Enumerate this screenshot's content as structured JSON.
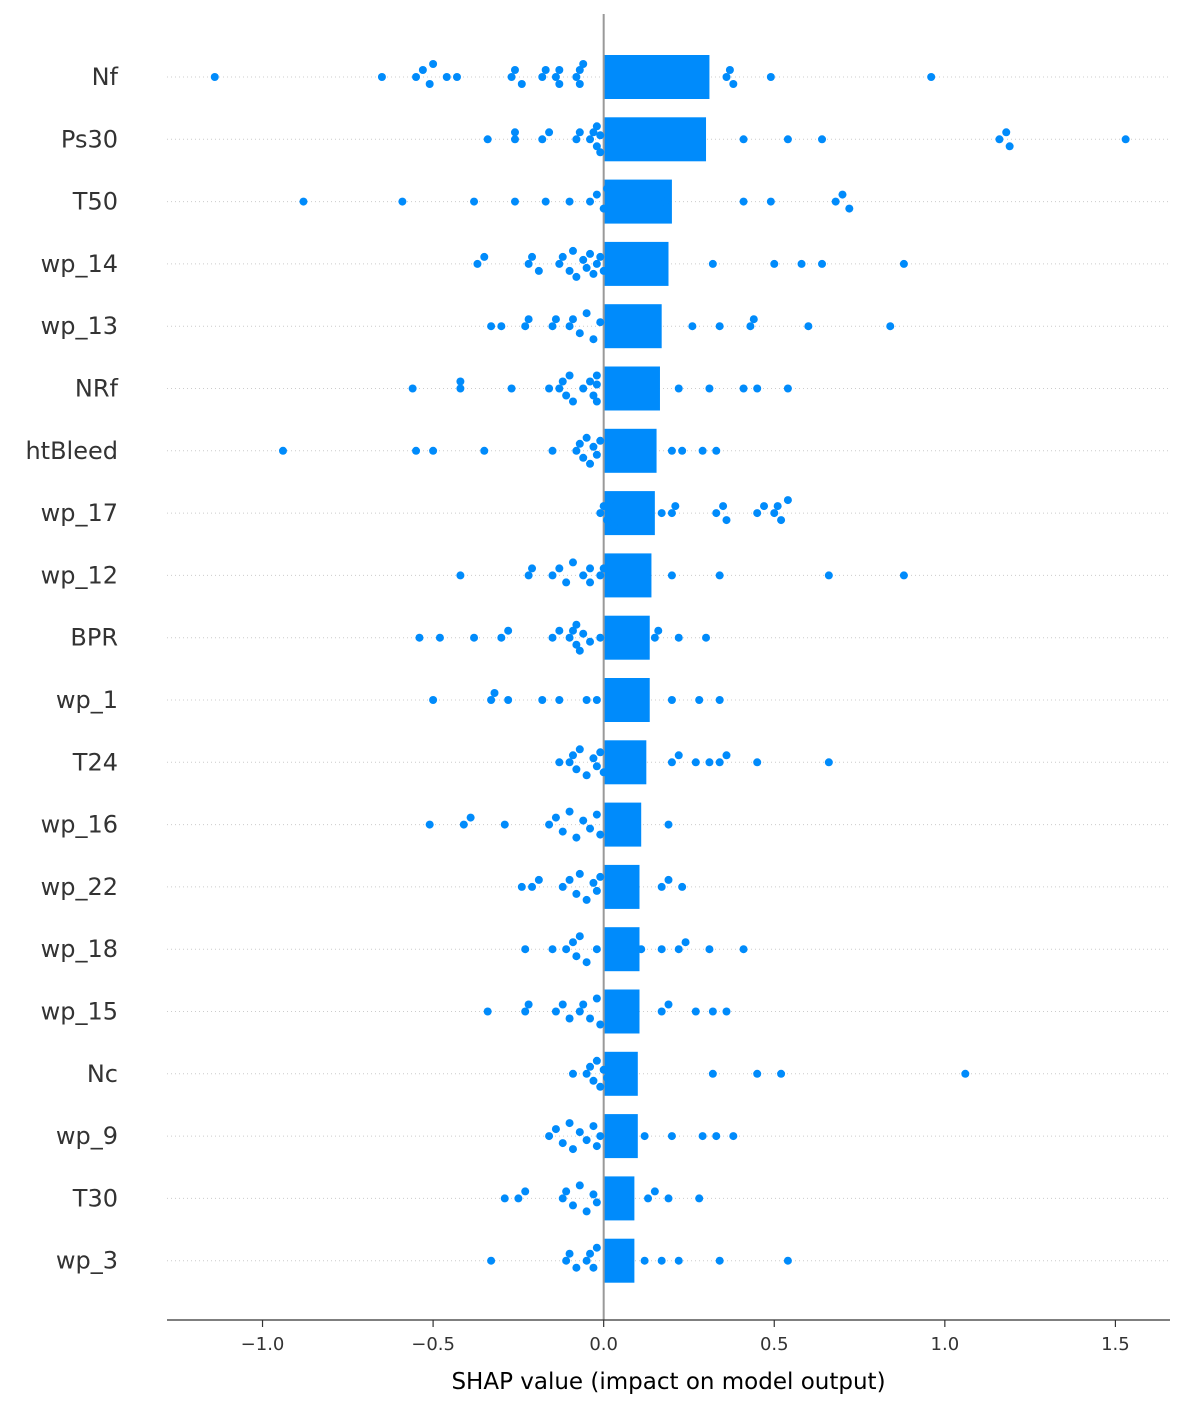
{
  "chart_data": {
    "type": "bar",
    "xlabel": "SHAP value (impact on model output)",
    "xlim": [
      -1.28,
      1.66
    ],
    "x_ticks": [
      -1.0,
      -0.5,
      0.0,
      0.5,
      1.0,
      1.5
    ],
    "x_tick_labels": [
      "−1.0",
      "−0.5",
      "0.0",
      "0.5",
      "1.0",
      "1.5"
    ],
    "grid": false,
    "colors": {
      "accent": "#008bfb",
      "zero_line": "#999999",
      "row_line": "#cccccc",
      "axis": "#333333"
    },
    "features": [
      {
        "name": "Nf",
        "mean_abs_shap": 0.31,
        "points": [
          -1.14,
          -0.65,
          -0.55,
          -0.53,
          -0.51,
          -0.5,
          -0.46,
          -0.43,
          -0.27,
          -0.26,
          -0.24,
          -0.18,
          -0.17,
          -0.14,
          -0.13,
          -0.13,
          -0.08,
          -0.07,
          -0.07,
          -0.06,
          0.36,
          0.37,
          0.38,
          0.49,
          0.96
        ]
      },
      {
        "name": "Ps30",
        "mean_abs_shap": 0.3,
        "points": [
          -0.34,
          -0.26,
          -0.26,
          -0.18,
          -0.16,
          -0.08,
          -0.07,
          -0.04,
          -0.03,
          -0.02,
          -0.02,
          -0.01,
          -0.01,
          0.41,
          0.54,
          0.64,
          1.16,
          1.18,
          1.19,
          1.53
        ]
      },
      {
        "name": "T50",
        "mean_abs_shap": 0.2,
        "points": [
          -0.88,
          -0.59,
          -0.38,
          -0.26,
          -0.17,
          -0.1,
          -0.04,
          -0.02,
          0.0,
          0.01,
          0.18,
          0.41,
          0.49,
          0.68,
          0.7,
          0.72
        ]
      },
      {
        "name": "wp_14",
        "mean_abs_shap": 0.19,
        "points": [
          -0.37,
          -0.35,
          -0.22,
          -0.21,
          -0.19,
          -0.13,
          -0.12,
          -0.1,
          -0.09,
          -0.08,
          -0.06,
          -0.05,
          -0.04,
          -0.03,
          -0.02,
          -0.01,
          0.0,
          0.32,
          0.5,
          0.58,
          0.64,
          0.88
        ]
      },
      {
        "name": "wp_13",
        "mean_abs_shap": 0.17,
        "points": [
          -0.33,
          -0.3,
          -0.23,
          -0.22,
          -0.15,
          -0.14,
          -0.1,
          -0.09,
          -0.07,
          -0.05,
          -0.03,
          -0.01,
          0.26,
          0.34,
          0.43,
          0.44,
          0.6,
          0.84
        ]
      },
      {
        "name": "NRf",
        "mean_abs_shap": 0.165,
        "points": [
          -0.56,
          -0.42,
          -0.42,
          -0.27,
          -0.16,
          -0.13,
          -0.12,
          -0.11,
          -0.1,
          -0.09,
          -0.06,
          -0.04,
          -0.03,
          -0.02,
          -0.02,
          -0.02,
          0.22,
          0.31,
          0.41,
          0.45,
          0.54
        ]
      },
      {
        "name": "htBleed",
        "mean_abs_shap": 0.155,
        "points": [
          -0.94,
          -0.55,
          -0.5,
          -0.35,
          -0.15,
          -0.08,
          -0.07,
          -0.06,
          -0.05,
          -0.04,
          -0.03,
          -0.02,
          -0.01,
          0.2,
          0.23,
          0.29,
          0.33
        ]
      },
      {
        "name": "wp_17",
        "mean_abs_shap": 0.15,
        "points": [
          -0.01,
          0.0,
          0.01,
          0.02,
          0.03,
          0.17,
          0.2,
          0.21,
          0.33,
          0.35,
          0.36,
          0.45,
          0.47,
          0.5,
          0.51,
          0.52,
          0.54
        ]
      },
      {
        "name": "wp_12",
        "mean_abs_shap": 0.14,
        "points": [
          -0.42,
          -0.22,
          -0.21,
          -0.15,
          -0.13,
          -0.11,
          -0.09,
          -0.06,
          -0.04,
          -0.04,
          -0.01,
          0.0,
          0.2,
          0.34,
          0.66,
          0.88
        ]
      },
      {
        "name": "BPR",
        "mean_abs_shap": 0.135,
        "points": [
          -0.54,
          -0.48,
          -0.38,
          -0.3,
          -0.28,
          -0.15,
          -0.13,
          -0.1,
          -0.09,
          -0.08,
          -0.08,
          -0.07,
          -0.06,
          -0.04,
          -0.01,
          0.15,
          0.16,
          0.22,
          0.3
        ]
      },
      {
        "name": "wp_1",
        "mean_abs_shap": 0.135,
        "points": [
          -0.5,
          -0.33,
          -0.32,
          -0.28,
          -0.18,
          -0.13,
          -0.05,
          -0.02,
          0.2,
          0.28,
          0.34
        ]
      },
      {
        "name": "T24",
        "mean_abs_shap": 0.125,
        "points": [
          -0.13,
          -0.1,
          -0.09,
          -0.08,
          -0.07,
          -0.05,
          -0.03,
          -0.02,
          -0.01,
          0.0,
          0.2,
          0.22,
          0.27,
          0.31,
          0.34,
          0.36,
          0.45,
          0.66
        ]
      },
      {
        "name": "wp_16",
        "mean_abs_shap": 0.11,
        "points": [
          -0.51,
          -0.41,
          -0.39,
          -0.29,
          -0.16,
          -0.14,
          -0.12,
          -0.1,
          -0.08,
          -0.06,
          -0.04,
          -0.02,
          -0.01,
          0.19
        ]
      },
      {
        "name": "wp_22",
        "mean_abs_shap": 0.105,
        "points": [
          -0.24,
          -0.21,
          -0.19,
          -0.12,
          -0.1,
          -0.08,
          -0.07,
          -0.05,
          -0.03,
          -0.02,
          -0.01,
          0.17,
          0.19,
          0.23
        ]
      },
      {
        "name": "wp_18",
        "mean_abs_shap": 0.105,
        "points": [
          -0.23,
          -0.15,
          -0.11,
          -0.09,
          -0.08,
          -0.07,
          -0.05,
          -0.02,
          0.11,
          0.17,
          0.22,
          0.24,
          0.31,
          0.41
        ]
      },
      {
        "name": "wp_15",
        "mean_abs_shap": 0.105,
        "points": [
          -0.34,
          -0.23,
          -0.22,
          -0.14,
          -0.12,
          -0.1,
          -0.07,
          -0.06,
          -0.04,
          -0.02,
          -0.01,
          0.17,
          0.19,
          0.27,
          0.32,
          0.36
        ]
      },
      {
        "name": "Nc",
        "mean_abs_shap": 0.1,
        "points": [
          -0.09,
          -0.05,
          -0.04,
          -0.03,
          -0.02,
          -0.01,
          0.0,
          0.01,
          0.32,
          0.45,
          0.52,
          1.06
        ]
      },
      {
        "name": "wp_9",
        "mean_abs_shap": 0.1,
        "points": [
          -0.16,
          -0.14,
          -0.12,
          -0.1,
          -0.09,
          -0.07,
          -0.05,
          -0.03,
          -0.02,
          -0.01,
          0.12,
          0.2,
          0.29,
          0.33,
          0.38
        ]
      },
      {
        "name": "T30",
        "mean_abs_shap": 0.09,
        "points": [
          -0.29,
          -0.25,
          -0.23,
          -0.12,
          -0.11,
          -0.09,
          -0.07,
          -0.05,
          -0.03,
          -0.02,
          0.13,
          0.15,
          0.19,
          0.28
        ]
      },
      {
        "name": "wp_3",
        "mean_abs_shap": 0.09,
        "points": [
          -0.33,
          -0.11,
          -0.1,
          -0.08,
          -0.05,
          -0.04,
          -0.03,
          -0.02,
          0.12,
          0.17,
          0.22,
          0.34,
          0.54
        ]
      }
    ]
  }
}
